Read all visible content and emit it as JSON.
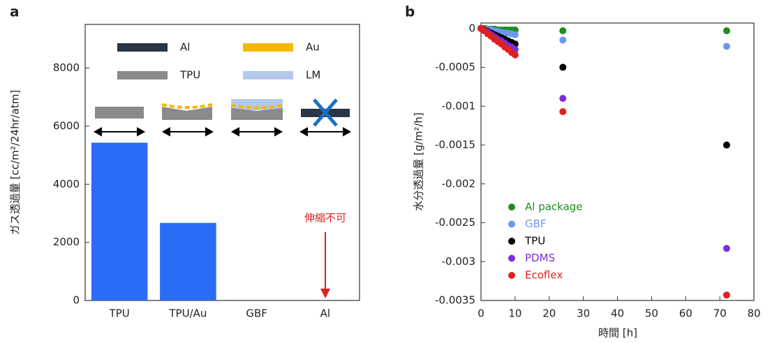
{
  "chart_data": [
    {
      "type": "bar",
      "panel_label": "a",
      "ylabel": "ガス透過量 [cc/m²/24hr/atm]",
      "categories": [
        "TPU",
        "TPU/Au",
        "GBF",
        "Al"
      ],
      "values": [
        5430,
        2670,
        0,
        null
      ],
      "color": "#2b6cf6",
      "ylim": [
        0,
        9500
      ],
      "yticks": [
        0,
        2000,
        4000,
        6000,
        8000
      ],
      "grid": false,
      "legend": [
        {
          "name": "Al",
          "color": "#2a3545"
        },
        {
          "name": "Au",
          "color": "#f5b800"
        },
        {
          "name": "TPU",
          "color": "#8a8a8a"
        },
        {
          "name": "LM",
          "color": "#b3c9ec"
        }
      ],
      "annotation": "伸縮不可"
    },
    {
      "type": "scatter",
      "panel_label": "b",
      "xlabel": "時間 [h]",
      "ylabel": "水分透過量 [g/m²/h]",
      "x": [
        0,
        1,
        2,
        3,
        4,
        5,
        6,
        7,
        8,
        9,
        10,
        24,
        72
      ],
      "series": [
        {
          "name": "Al package",
          "color": "#1e8c1e",
          "values": [
            0,
            0,
            -1e-05,
            -1e-05,
            -1e-05,
            -2e-05,
            -2e-05,
            -2e-05,
            -2e-05,
            -2e-05,
            -2e-05,
            -3e-05,
            -3e-05
          ]
        },
        {
          "name": "GBF",
          "color": "#6f96f0",
          "values": [
            0,
            -1e-05,
            -2e-05,
            -2e-05,
            -3e-05,
            -4e-05,
            -5e-05,
            -6e-05,
            -6e-05,
            -7e-05,
            -8e-05,
            -0.00015,
            -0.00023
          ]
        },
        {
          "name": "TPU",
          "color": "#000000",
          "values": [
            0,
            -2e-05,
            -4e-05,
            -6e-05,
            -8e-05,
            -0.0001,
            -0.00012,
            -0.00014,
            -0.00016,
            -0.00018,
            -0.0002,
            -0.0005,
            -0.0015
          ]
        },
        {
          "name": "PDMS",
          "color": "#7b2fd8",
          "values": [
            0,
            -3e-05,
            -5e-05,
            -8e-05,
            -0.00011,
            -0.00014,
            -0.00016,
            -0.00019,
            -0.00022,
            -0.00024,
            -0.00027,
            -0.0009,
            -0.00283
          ]
        },
        {
          "name": "Ecoflex",
          "color": "#e02020",
          "values": [
            0,
            -3e-05,
            -7e-05,
            -0.0001,
            -0.00014,
            -0.00017,
            -0.0002,
            -0.00024,
            -0.00027,
            -0.00031,
            -0.00034,
            -0.00107,
            -0.00343
          ]
        }
      ],
      "xlim": [
        0,
        80
      ],
      "xticks": [
        0,
        10,
        20,
        30,
        40,
        50,
        60,
        70,
        80
      ],
      "ylim": [
        -0.0035,
        7e-05
      ],
      "yticks": [
        0,
        -0.0005,
        -0.001,
        -0.0015,
        -0.002,
        -0.0025,
        -0.003,
        -0.0035
      ]
    }
  ]
}
